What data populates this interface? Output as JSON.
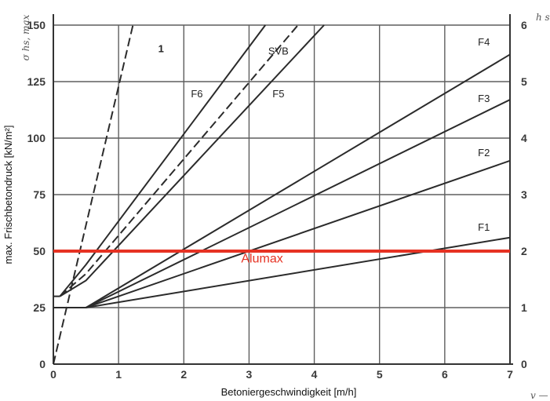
{
  "chart_data": {
    "type": "line",
    "xlabel": "Betoniergeschwindigkeit [m/h]",
    "ylabel": "max. Frischbetondruck [kN/m²]",
    "xlim": [
      0,
      7
    ],
    "ylim": [
      0,
      150
    ],
    "y2lim": [
      0,
      6
    ],
    "x_ticks": [
      "0",
      "1",
      "2",
      "3",
      "4",
      "5",
      "6",
      "7"
    ],
    "y_ticks": [
      "0",
      "25",
      "50",
      "75",
      "100",
      "125",
      "150"
    ],
    "y2_ticks": [
      "0",
      "1",
      "2",
      "3",
      "4",
      "5",
      "6"
    ],
    "corner_labels": {
      "y_left": "σ hs, max",
      "y_right": "h s",
      "x_right": "v —"
    },
    "grid": true,
    "series": [
      {
        "name": "1",
        "style": "dashed",
        "color": "#2b2b2b",
        "label_at": [
          1.65,
          138
        ],
        "x": [
          0,
          1.22
        ],
        "y": [
          0,
          150
        ]
      },
      {
        "name": "F6",
        "style": "solid",
        "color": "#2b2b2b",
        "label_at": [
          2.2,
          118
        ],
        "x": [
          0.1,
          0.5,
          3.25
        ],
        "y": [
          30,
          44,
          150
        ]
      },
      {
        "name": "SVB",
        "style": "dashed",
        "color": "#2b2b2b",
        "label_at": [
          3.45,
          137
        ],
        "x": [
          0.1,
          0.5,
          3.75
        ],
        "y": [
          30,
          40,
          150
        ]
      },
      {
        "name": "F5",
        "style": "solid",
        "color": "#2b2b2b",
        "label_at": [
          3.45,
          118
        ],
        "x": [
          0.1,
          0.5,
          4.15
        ],
        "y": [
          30,
          37,
          150
        ]
      },
      {
        "name": "F4",
        "style": "solid",
        "color": "#2b2b2b",
        "label_at": [
          6.6,
          141
        ],
        "x": [
          0,
          0.5,
          7
        ],
        "y": [
          25,
          25,
          137
        ]
      },
      {
        "name": "F3",
        "style": "solid",
        "color": "#2b2b2b",
        "label_at": [
          6.6,
          116
        ],
        "x": [
          0,
          0.5,
          7
        ],
        "y": [
          25,
          25,
          117
        ]
      },
      {
        "name": "F2",
        "style": "solid",
        "color": "#2b2b2b",
        "label_at": [
          6.6,
          92
        ],
        "x": [
          0,
          0.5,
          7
        ],
        "y": [
          25,
          25,
          90
        ]
      },
      {
        "name": "F1",
        "style": "solid",
        "color": "#2b2b2b",
        "label_at": [
          6.6,
          59
        ],
        "x": [
          0,
          0.5,
          7
        ],
        "y": [
          25,
          25,
          56
        ]
      },
      {
        "name": "",
        "style": "solid",
        "color": "#2b2b2b",
        "x": [
          0,
          0.1
        ],
        "y": [
          30,
          30
        ]
      }
    ],
    "annotations": [
      {
        "text": "Alumax",
        "type": "hline",
        "y": 50,
        "color": "#e63223",
        "label_at": [
          3.2,
          45
        ]
      }
    ]
  }
}
